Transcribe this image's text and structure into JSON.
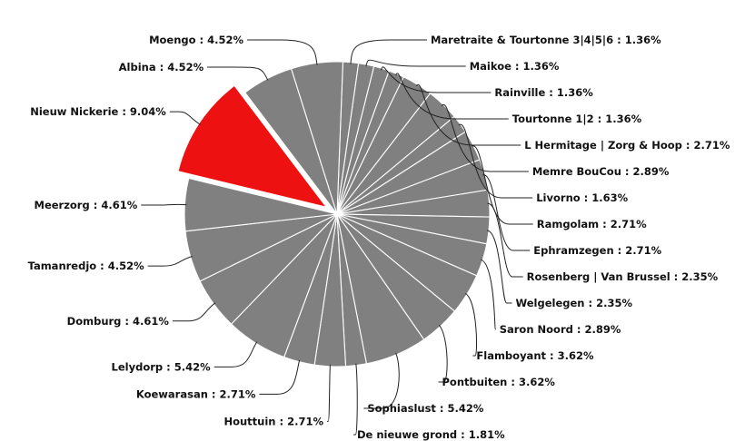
{
  "chart_data": {
    "type": "pie",
    "title": "",
    "label_separator": " : ",
    "colors": {
      "default": "#808080",
      "highlight": "#ee1111",
      "border": "#ffffff"
    },
    "highlighted": "Nieuw Nickerie",
    "slices": [
      {
        "name": "Maretraite & Tourtonne 3|4|5|6",
        "value": 1.36,
        "label": "1.36%"
      },
      {
        "name": "Maikoe",
        "value": 1.36,
        "label": "1.36%"
      },
      {
        "name": "Rainville",
        "value": 1.36,
        "label": "1.36%"
      },
      {
        "name": "Tourtonne 1|2",
        "value": 1.36,
        "label": "1.36%"
      },
      {
        "name": "L Hermitage | Zorg & Hoop",
        "value": 2.71,
        "label": "2.71%"
      },
      {
        "name": "Memre BouCou",
        "value": 2.89,
        "label": "2.89%"
      },
      {
        "name": "Livorno",
        "value": 1.63,
        "label": "1.63%"
      },
      {
        "name": "Ramgolam",
        "value": 2.71,
        "label": "2.71%"
      },
      {
        "name": "Ephramzegen",
        "value": 2.71,
        "label": "2.71%"
      },
      {
        "name": "Rosenberg | Van Brussel",
        "value": 2.35,
        "label": "2.35%"
      },
      {
        "name": "Welgelegen",
        "value": 2.35,
        "label": "2.35%"
      },
      {
        "name": "Saron Noord",
        "value": 2.89,
        "label": "2.89%"
      },
      {
        "name": "Flamboyant",
        "value": 3.62,
        "label": "3.62%"
      },
      {
        "name": "Pontbuiten",
        "value": 3.62,
        "label": "3.62%"
      },
      {
        "name": "Sophiaslust",
        "value": 5.42,
        "label": "5.42%"
      },
      {
        "name": "De nieuwe grond",
        "value": 1.81,
        "label": "1.81%"
      },
      {
        "name": "Houttuin",
        "value": 2.71,
        "label": "2.71%"
      },
      {
        "name": "Koewarasan",
        "value": 2.71,
        "label": "2.71%"
      },
      {
        "name": "Lelydorp",
        "value": 5.42,
        "label": "5.42%"
      },
      {
        "name": "Domburg",
        "value": 4.61,
        "label": "4.61%"
      },
      {
        "name": "Tamanredjo",
        "value": 4.52,
        "label": "4.52%"
      },
      {
        "name": "Meerzorg",
        "value": 4.61,
        "label": "4.61%"
      },
      {
        "name": "Nieuw Nickerie",
        "value": 9.04,
        "label": "9.04%"
      },
      {
        "name": "Albina",
        "value": 4.52,
        "label": "4.52%"
      },
      {
        "name": "Moengo",
        "value": 4.52,
        "label": "4.52%"
      }
    ]
  }
}
